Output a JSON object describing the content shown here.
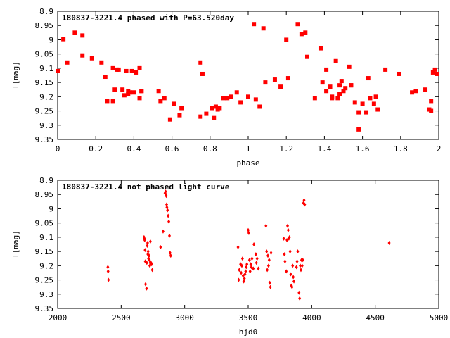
{
  "chart_data": [
    {
      "type": "scatter",
      "title": "180837-3221.4 phased with P=63.520day",
      "xlabel": "phase",
      "ylabel": "I[mag]",
      "xlim": [
        0,
        2
      ],
      "ylim": [
        8.9,
        9.35
      ],
      "y_inverted": true,
      "grid": false,
      "marker_color": "#ff0000",
      "marker": "filled-square",
      "xticks": [
        "0",
        "0.2",
        "0.4",
        "0.6",
        "0.8",
        "1",
        "1.2",
        "1.4",
        "1.6",
        "1.8",
        "2"
      ],
      "yticks": [
        "8.9",
        "8.95",
        "9",
        "9.05",
        "9.1",
        "9.15",
        "9.2",
        "9.25",
        "9.3",
        "9.35"
      ],
      "series": [
        {
          "x": [
            0.003,
            0.03,
            0.05,
            0.09,
            0.13,
            0.13,
            0.18,
            0.23,
            0.25,
            0.26,
            0.29,
            0.29,
            0.3,
            0.31,
            0.32,
            0.34,
            0.35,
            0.36,
            0.37,
            0.37,
            0.38,
            0.39,
            0.4,
            0.41,
            0.43,
            0.43,
            0.44,
            0.44,
            0.53,
            0.54,
            0.56,
            0.59,
            0.61,
            0.64,
            0.65,
            0.75,
            0.75,
            0.76,
            0.78,
            0.81,
            0.82,
            0.83,
            0.84,
            0.85,
            0.87,
            0.89,
            0.91,
            0.94,
            0.96,
            1.0,
            1.03,
            1.04,
            1.06,
            1.08,
            1.09,
            1.14,
            1.17,
            1.2,
            1.21,
            1.26,
            1.28,
            1.3,
            1.31,
            1.35,
            1.38,
            1.39,
            1.41,
            1.41,
            1.43,
            1.44,
            1.44,
            1.46,
            1.47,
            1.48,
            1.48,
            1.49,
            1.5,
            1.51,
            1.53,
            1.54,
            1.54,
            1.56,
            1.58,
            1.58,
            1.6,
            1.62,
            1.63,
            1.64,
            1.66,
            1.67,
            1.68,
            1.72,
            1.79,
            1.86,
            1.88,
            1.93,
            1.95,
            1.96,
            1.96,
            1.97,
            1.98,
            1.99
          ],
          "y": [
            9.11,
            8.998,
            9.08,
            8.975,
            8.985,
            9.055,
            9.065,
            9.08,
            9.13,
            9.215,
            9.1,
            9.215,
            9.175,
            9.105,
            9.105,
            9.175,
            9.195,
            9.11,
            9.18,
            9.19,
            9.185,
            9.11,
            9.185,
            9.115,
            9.205,
            9.1,
            9.18,
            9.18,
            9.18,
            9.215,
            9.205,
            9.28,
            9.225,
            9.265,
            9.24,
            9.08,
            9.27,
            9.12,
            9.26,
            9.24,
            9.275,
            9.235,
            9.245,
            9.24,
            9.205,
            9.205,
            9.2,
            9.185,
            9.22,
            9.2,
            8.945,
            9.21,
            9.235,
            8.96,
            9.15,
            9.14,
            9.165,
            9.0,
            9.135,
            8.945,
            8.98,
            8.975,
            9.06,
            9.205,
            9.03,
            9.15,
            9.105,
            9.18,
            9.165,
            9.2,
            9.205,
            9.075,
            9.205,
            9.16,
            9.19,
            9.145,
            9.18,
            9.17,
            9.095,
            9.16,
            9.16,
            9.22,
            9.255,
            9.315,
            9.225,
            9.255,
            9.135,
            9.205,
            9.225,
            9.2,
            9.245,
            9.105,
            9.12,
            9.185,
            9.18,
            9.175,
            9.245,
            9.25,
            9.215,
            9.115,
            9.105,
            9.12
          ]
        }
      ]
    },
    {
      "type": "scatter",
      "title": "180837-3221.4 not phased light curve",
      "xlabel": "hjd0",
      "ylabel": "I[mag]",
      "xlim": [
        2000,
        5000
      ],
      "ylim": [
        8.9,
        9.35
      ],
      "y_inverted": true,
      "grid": false,
      "marker_color": "#ff0000",
      "marker": "small-diamond",
      "xticks": [
        "2000",
        "2500",
        "3000",
        "3500",
        "4000",
        "4500",
        "5000"
      ],
      "yticks": [
        "8.9",
        "8.95",
        "9",
        "9.05",
        "9.1",
        "9.15",
        "9.2",
        "9.25",
        "9.3",
        "9.35"
      ],
      "series": [
        {
          "x": [
            2395,
            2397,
            2400,
            2680,
            2683,
            2685,
            2688,
            2690,
            2692,
            2700,
            2702,
            2705,
            2708,
            2710,
            2712,
            2715,
            2720,
            2722,
            2725,
            2728,
            2730,
            2735,
            2740,
            2745,
            2810,
            2830,
            2845,
            2850,
            2852,
            2855,
            2858,
            2860,
            2865,
            2870,
            2875,
            2880,
            2885,
            2890,
            3420,
            3425,
            3430,
            3440,
            3445,
            3450,
            3455,
            3460,
            3465,
            3470,
            3475,
            3480,
            3485,
            3490,
            3500,
            3505,
            3510,
            3515,
            3520,
            3525,
            3530,
            3540,
            3545,
            3560,
            3565,
            3570,
            3580,
            3640,
            3645,
            3650,
            3655,
            3660,
            3665,
            3670,
            3675,
            3680,
            3780,
            3785,
            3790,
            3800,
            3805,
            3810,
            3815,
            3820,
            3825,
            3830,
            3835,
            3840,
            3845,
            3850,
            3855,
            3860,
            3880,
            3885,
            3890,
            3900,
            3905,
            3910,
            3915,
            3920,
            3925,
            3930,
            3935,
            3940,
            3945,
            4610
          ],
          "y": [
            9.205,
            9.22,
            9.25,
            9.1,
            9.105,
            9.11,
            9.145,
            9.185,
            9.265,
            9.28,
            9.19,
            9.13,
            9.12,
            9.16,
            9.15,
            9.175,
            9.165,
            9.18,
            9.2,
            9.19,
            9.115,
            9.19,
            9.195,
            9.215,
            9.135,
            9.08,
            8.945,
            8.94,
            8.95,
            8.955,
            8.985,
            8.995,
            9.005,
            9.025,
            9.045,
            9.095,
            9.155,
            9.165,
            9.135,
            9.25,
            9.215,
            9.195,
            9.225,
            9.2,
            9.175,
            9.235,
            9.255,
            9.245,
            9.23,
            9.22,
            9.205,
            9.195,
            9.075,
            9.085,
            9.18,
            9.22,
            9.195,
            9.205,
            9.175,
            9.21,
            9.125,
            9.16,
            9.19,
            9.175,
            9.21,
            9.06,
            9.15,
            9.215,
            9.165,
            9.2,
            9.18,
            9.26,
            9.275,
            9.155,
            9.105,
            9.16,
            9.185,
            9.22,
            9.11,
            9.06,
            9.075,
            9.105,
            9.1,
            9.15,
            9.23,
            9.27,
            9.275,
            9.2,
            9.24,
            9.255,
            9.205,
            9.185,
            9.15,
            9.295,
            9.315,
            9.2,
            9.215,
            9.18,
            9.2,
            9.18,
            8.98,
            8.97,
            8.985,
            9.12
          ]
        }
      ]
    }
  ]
}
